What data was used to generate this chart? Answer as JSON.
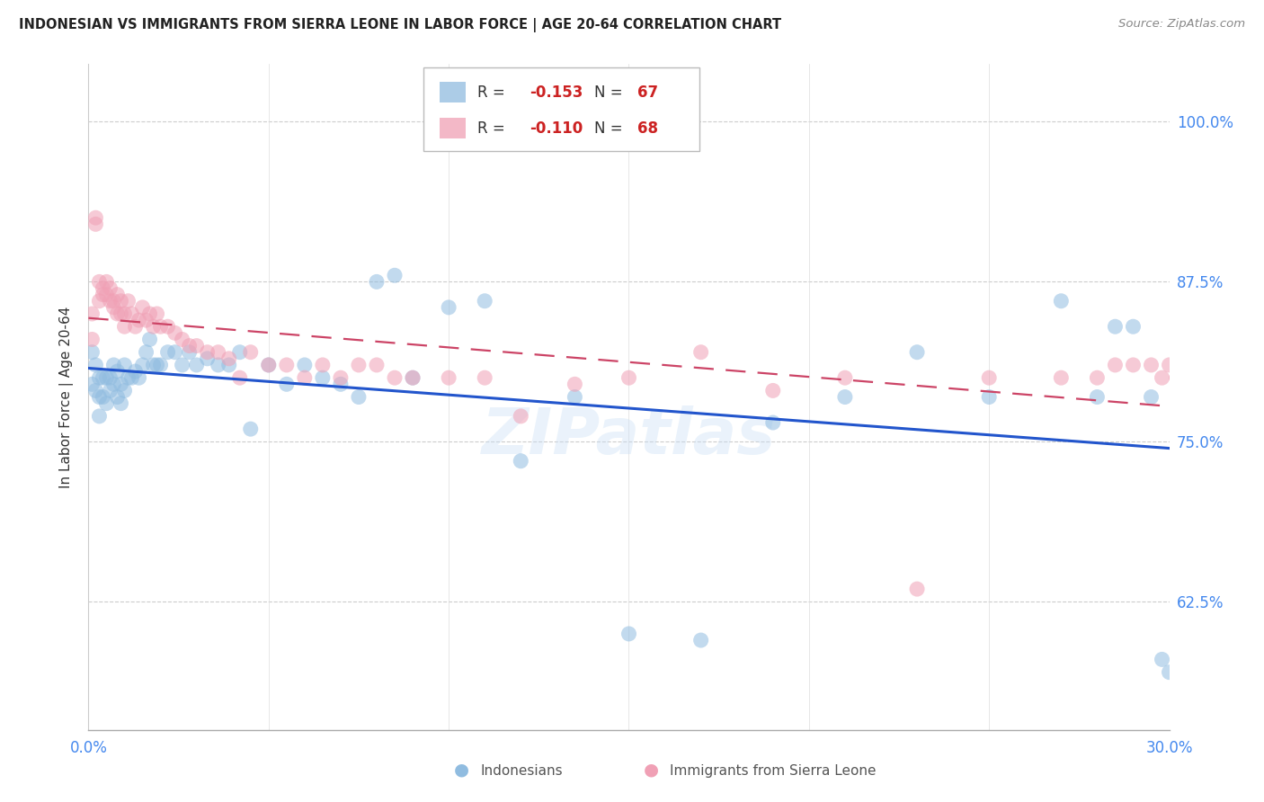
{
  "title": "INDONESIAN VS IMMIGRANTS FROM SIERRA LEONE IN LABOR FORCE | AGE 20-64 CORRELATION CHART",
  "source": "Source: ZipAtlas.com",
  "ylabel": "In Labor Force | Age 20-64",
  "yticks": [
    0.625,
    0.75,
    0.875,
    1.0
  ],
  "ytick_labels": [
    "62.5%",
    "75.0%",
    "87.5%",
    "100.0%"
  ],
  "xmin": 0.0,
  "xmax": 0.3,
  "ymin": 0.525,
  "ymax": 1.045,
  "indonesian_color": "#90bce0",
  "sieraleone_color": "#f0a0b5",
  "trend_blue": "#2255cc",
  "trend_pink": "#cc4466",
  "watermark": "ZIPatlas",
  "r_indo": "-0.153",
  "n_indo": "67",
  "r_sl": "-0.110",
  "n_sl": "68",
  "indo_label": "Indonesians",
  "sl_label": "Immigrants from Sierra Leone",
  "indonesian_x": [
    0.001,
    0.001,
    0.002,
    0.002,
    0.003,
    0.003,
    0.003,
    0.004,
    0.004,
    0.005,
    0.005,
    0.006,
    0.006,
    0.007,
    0.007,
    0.008,
    0.008,
    0.009,
    0.009,
    0.01,
    0.01,
    0.011,
    0.012,
    0.013,
    0.014,
    0.015,
    0.016,
    0.017,
    0.018,
    0.019,
    0.02,
    0.022,
    0.024,
    0.026,
    0.028,
    0.03,
    0.033,
    0.036,
    0.039,
    0.042,
    0.045,
    0.05,
    0.055,
    0.06,
    0.065,
    0.07,
    0.075,
    0.08,
    0.085,
    0.09,
    0.1,
    0.11,
    0.12,
    0.135,
    0.15,
    0.17,
    0.19,
    0.21,
    0.23,
    0.25,
    0.27,
    0.28,
    0.285,
    0.29,
    0.295,
    0.298,
    0.3
  ],
  "indonesian_y": [
    0.82,
    0.795,
    0.81,
    0.79,
    0.8,
    0.785,
    0.77,
    0.8,
    0.785,
    0.8,
    0.78,
    0.8,
    0.79,
    0.81,
    0.795,
    0.805,
    0.785,
    0.795,
    0.78,
    0.81,
    0.79,
    0.8,
    0.8,
    0.805,
    0.8,
    0.81,
    0.82,
    0.83,
    0.81,
    0.81,
    0.81,
    0.82,
    0.82,
    0.81,
    0.82,
    0.81,
    0.815,
    0.81,
    0.81,
    0.82,
    0.76,
    0.81,
    0.795,
    0.81,
    0.8,
    0.795,
    0.785,
    0.875,
    0.88,
    0.8,
    0.855,
    0.86,
    0.735,
    0.785,
    0.6,
    0.595,
    0.765,
    0.785,
    0.82,
    0.785,
    0.86,
    0.785,
    0.84,
    0.84,
    0.785,
    0.58,
    0.57
  ],
  "sieraleone_x": [
    0.001,
    0.001,
    0.002,
    0.002,
    0.003,
    0.003,
    0.004,
    0.004,
    0.005,
    0.005,
    0.006,
    0.006,
    0.007,
    0.007,
    0.008,
    0.008,
    0.009,
    0.009,
    0.01,
    0.01,
    0.011,
    0.012,
    0.013,
    0.014,
    0.015,
    0.016,
    0.017,
    0.018,
    0.019,
    0.02,
    0.022,
    0.024,
    0.026,
    0.028,
    0.03,
    0.033,
    0.036,
    0.039,
    0.042,
    0.045,
    0.05,
    0.055,
    0.06,
    0.065,
    0.07,
    0.075,
    0.08,
    0.085,
    0.09,
    0.1,
    0.11,
    0.12,
    0.135,
    0.15,
    0.17,
    0.19,
    0.21,
    0.23,
    0.25,
    0.27,
    0.28,
    0.285,
    0.29,
    0.295,
    0.298,
    0.3,
    0.302,
    0.305
  ],
  "sieraleone_y": [
    0.85,
    0.83,
    0.925,
    0.92,
    0.875,
    0.86,
    0.87,
    0.865,
    0.875,
    0.865,
    0.87,
    0.86,
    0.86,
    0.855,
    0.865,
    0.85,
    0.86,
    0.85,
    0.85,
    0.84,
    0.86,
    0.85,
    0.84,
    0.845,
    0.855,
    0.845,
    0.85,
    0.84,
    0.85,
    0.84,
    0.84,
    0.835,
    0.83,
    0.825,
    0.825,
    0.82,
    0.82,
    0.815,
    0.8,
    0.82,
    0.81,
    0.81,
    0.8,
    0.81,
    0.8,
    0.81,
    0.81,
    0.8,
    0.8,
    0.8,
    0.8,
    0.77,
    0.795,
    0.8,
    0.82,
    0.79,
    0.8,
    0.635,
    0.8,
    0.8,
    0.8,
    0.81,
    0.81,
    0.81,
    0.8,
    0.81,
    0.8,
    0.81
  ]
}
